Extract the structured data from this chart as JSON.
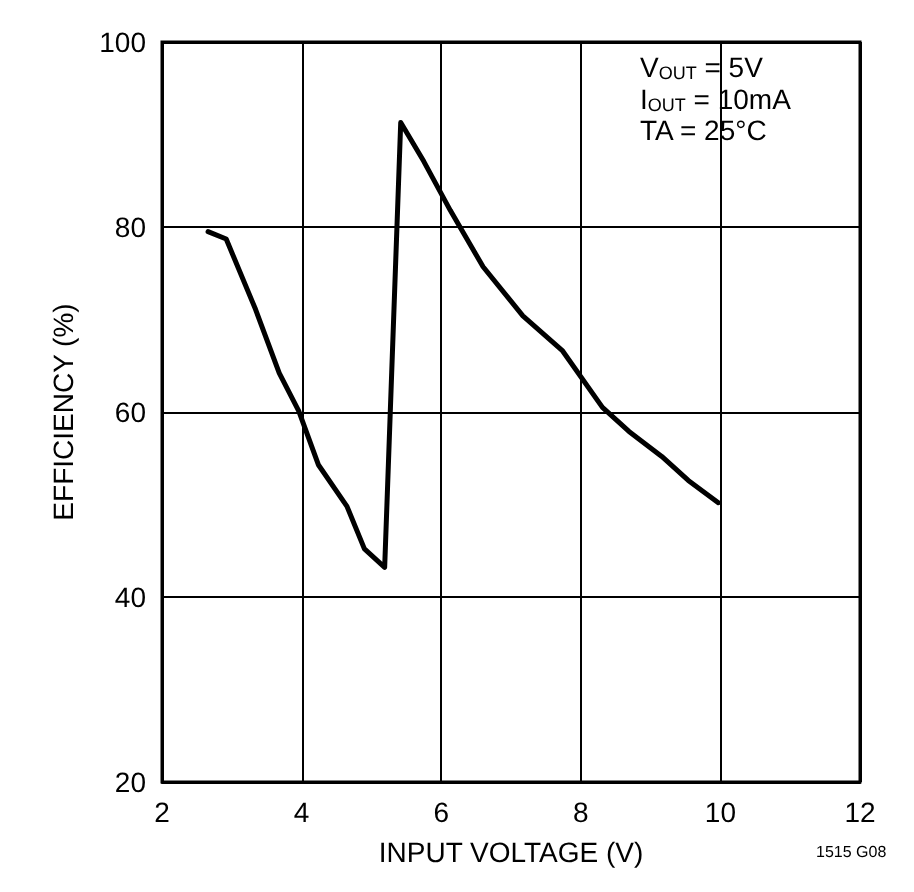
{
  "chart_data": {
    "type": "line",
    "xlabel": "INPUT VOLTAGE (V)",
    "ylabel": "EFFICIENCY (%)",
    "annotations": [
      "V$_{OUT}$ = 5V",
      "I$_{OUT}$ = 10mA",
      "TA = 25°C",
      "1515 G08"
    ],
    "series": [
      {
        "color": "#000000",
        "x": [
          2.66,
          2.92,
          3.34,
          3.68,
          3.96,
          4.24,
          4.65,
          4.9,
          5.19,
          5.42,
          5.75,
          6.13,
          6.6,
          7.17,
          7.74,
          8.31,
          8.69,
          9.16,
          9.54,
          9.97
        ],
        "values": [
          79.5,
          78.7,
          71.1,
          64.2,
          60.1,
          54.3,
          49.8,
          45.2,
          43.2,
          91.3,
          87.1,
          81.8,
          75.7,
          70.4,
          66.6,
          60.5,
          57.9,
          55.2,
          52.6,
          50.2
        ]
      }
    ],
    "xlim": [
      2,
      12
    ],
    "xticks": [
      2,
      4,
      6,
      8,
      10,
      12
    ],
    "ylim": [
      20,
      100
    ],
    "yticks": [
      20,
      40,
      60,
      80,
      100
    ],
    "grid": true,
    "marker": "none",
    "line_style": "solid"
  }
}
